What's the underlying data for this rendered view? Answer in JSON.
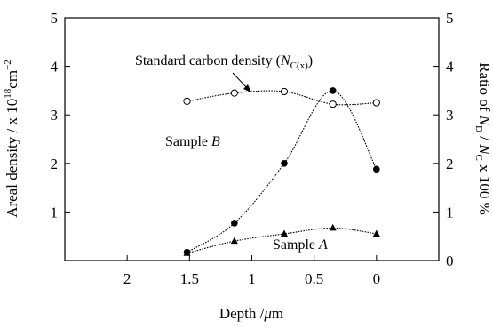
{
  "chart_data": {
    "type": "line",
    "xlabel": "Depth /μm",
    "ylabel_left": "Areal density / x 10¹⁸cm⁻²",
    "ylabel_right": "Ratio of N_D / N_C x 100 %",
    "xlim": [
      2.5,
      -0.5
    ],
    "x_ticks": [
      "2",
      "1.5",
      "1",
      "0.5",
      "0"
    ],
    "x_tick_values": [
      2,
      1.5,
      1,
      0.5,
      0
    ],
    "ylim_left": [
      0,
      5
    ],
    "ylim_right": [
      0,
      5
    ],
    "y_ticks_left": [
      "1",
      "2",
      "3",
      "4",
      "5"
    ],
    "y_ticks_right": [
      "0",
      "1",
      "2",
      "3",
      "4",
      "5"
    ],
    "grid": false,
    "series": [
      {
        "name": "Standard carbon density (N_C(x))",
        "marker": "open-circle",
        "axis": "left",
        "x": [
          1.52,
          1.14,
          0.74,
          0.35,
          0.0
        ],
        "y": [
          3.28,
          3.45,
          3.48,
          3.22,
          3.25
        ]
      },
      {
        "name": "Sample B",
        "marker": "filled-circle",
        "axis": "right",
        "x": [
          1.52,
          1.14,
          0.74,
          0.35,
          0.0
        ],
        "y": [
          0.17,
          0.77,
          2.0,
          3.5,
          1.88
        ]
      },
      {
        "name": "Sample A",
        "marker": "filled-triangle",
        "axis": "right",
        "x": [
          1.52,
          1.14,
          0.74,
          0.35,
          0.0
        ],
        "y": [
          0.15,
          0.4,
          0.55,
          0.67,
          0.55
        ]
      }
    ],
    "annotations": {
      "std_prefix": "Standard carbon density (",
      "std_N": "N",
      "std_sub": "C(x)",
      "std_suffix": ")",
      "sampleB_prefix": "Sample ",
      "sampleB_letter": "B",
      "sampleA_prefix": "Sample ",
      "sampleA_letter": "A"
    },
    "labels": {
      "x_prefix": "Depth /",
      "x_mu": "μ",
      "x_unit": "m",
      "yl_main": "Areal density / x 10",
      "yl_exp1": "18",
      "yl_cm": "cm",
      "yl_exp2": "−2",
      "yr_prefix": "Ratio of ",
      "yr_N1": "N",
      "yr_sub1": "D",
      "yr_slash": " / ",
      "yr_N2": "N",
      "yr_sub2": "C",
      "yr_suffix": " x 100 %"
    }
  }
}
